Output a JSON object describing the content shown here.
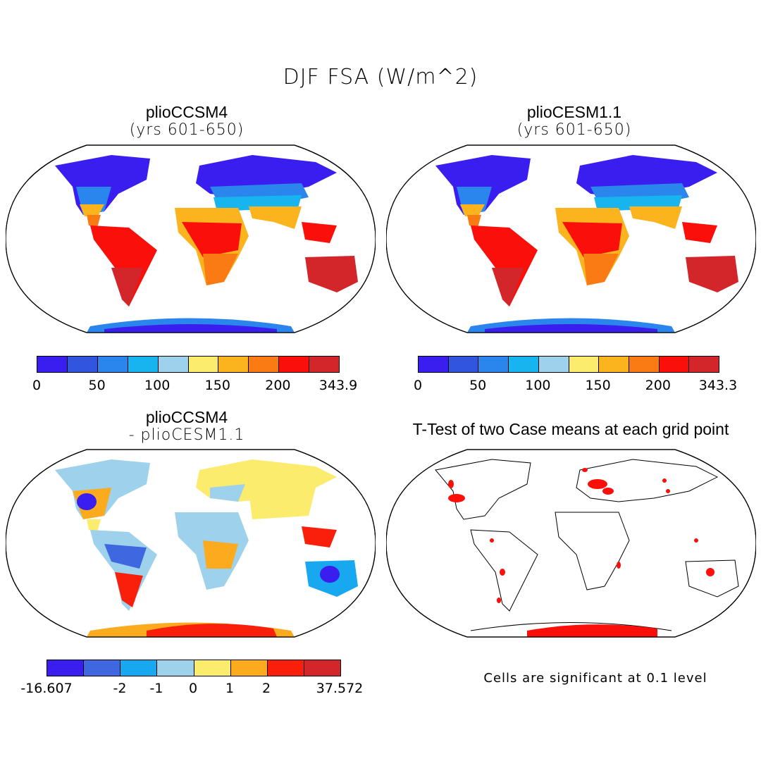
{
  "title": "DJF FSA (W/m^2)",
  "panels": [
    {
      "id": "tl",
      "title": "plioCCSM4",
      "subtitle": "(yrs 601-650)",
      "colorbar": {
        "colors": [
          "#3a1ef0",
          "#3255e0",
          "#2a86ec",
          "#18b4f0",
          "#9ed2ec",
          "#fbec6e",
          "#fcb41e",
          "#fa7a14",
          "#fa0f0a",
          "#d3262a"
        ],
        "labels": [
          "0",
          "50",
          "100",
          "150",
          "200",
          "343.9"
        ]
      }
    },
    {
      "id": "tr",
      "title": "plioCESM1.1",
      "subtitle": "(yrs 601-650)",
      "colorbar": {
        "colors": [
          "#3a1ef0",
          "#3255e0",
          "#2a86ec",
          "#18b4f0",
          "#9ed2ec",
          "#fbec6e",
          "#fcb41e",
          "#fa7a14",
          "#fa0f0a",
          "#d3262a"
        ],
        "labels": [
          "0",
          "50",
          "100",
          "150",
          "200",
          "343.3"
        ]
      }
    },
    {
      "id": "bl",
      "title": "plioCCSM4",
      "subtitle": "- plioCESM1.1",
      "colorbar": {
        "colors": [
          "#3a1ef0",
          "#3f68e0",
          "#18a8f0",
          "#9ed2ec",
          "#fbec6e",
          "#fcaa1e",
          "#fa1f0a",
          "#d3262a"
        ],
        "labels": [
          "-16.607",
          "-2",
          "-1",
          "0",
          "1",
          "2",
          "37.572"
        ]
      }
    },
    {
      "id": "br",
      "title": "T-Test of two Case means at each grid point",
      "note": "Cells are significant at 0.1 level"
    }
  ]
}
